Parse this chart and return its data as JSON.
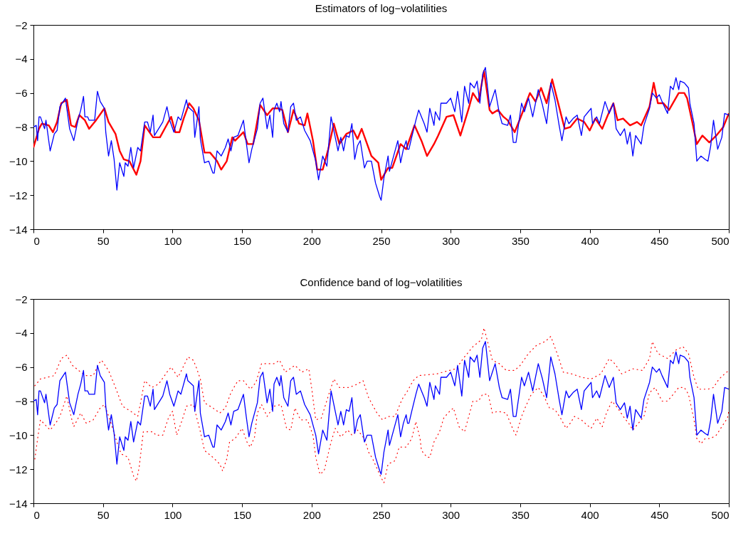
{
  "chart_data": [
    {
      "type": "line",
      "title": "Estimators of log−volatilities",
      "xlim": [
        0,
        500
      ],
      "xticks": [
        0,
        50,
        100,
        150,
        200,
        250,
        300,
        350,
        400,
        450,
        500
      ],
      "ylim": [
        -14,
        -2
      ],
      "yticks": [
        -14,
        -12,
        -10,
        -8,
        -6,
        -4,
        -2
      ],
      "series": [
        {
          "color": "#ff0000",
          "x": [
            0,
            4,
            6,
            11,
            14,
            17,
            20,
            24,
            27,
            30,
            33,
            37,
            40,
            45,
            51,
            54,
            59,
            62,
            65,
            69,
            74,
            77,
            80,
            86,
            91,
            95,
            99,
            102,
            105,
            108,
            112,
            115,
            119,
            123,
            127,
            132,
            135,
            139,
            143,
            145,
            151,
            154,
            158,
            163,
            168,
            172,
            176,
            179,
            183,
            187,
            191,
            195,
            197,
            201,
            204,
            208,
            212,
            216,
            220,
            225,
            230,
            233,
            236,
            243,
            248,
            250,
            255,
            258,
            264,
            268,
            274,
            279,
            283,
            288,
            291,
            297,
            302,
            307,
            313,
            316,
            320,
            324,
            328,
            330,
            334,
            338,
            341,
            346,
            350,
            357,
            361,
            365,
            369,
            373,
            377,
            382,
            386,
            391,
            396,
            400,
            404,
            409,
            413,
            417,
            420,
            424,
            429,
            434,
            437,
            443,
            446,
            449,
            453,
            457,
            464,
            468,
            470,
            474,
            477,
            481,
            486,
            491,
            496,
            500
          ],
          "values": [
            -9.2,
            -8.1,
            -7.8,
            -7.9,
            -8.3,
            -7.7,
            -6.6,
            -6.4,
            -7.9,
            -8.0,
            -7.3,
            -7.6,
            -8.1,
            -7.6,
            -6.9,
            -7.7,
            -8.4,
            -9.4,
            -9.9,
            -10.0,
            -10.8,
            -10.0,
            -7.9,
            -8.6,
            -8.6,
            -8.0,
            -7.4,
            -8.3,
            -8.3,
            -7.5,
            -6.6,
            -6.9,
            -7.6,
            -9.5,
            -9.5,
            -10.0,
            -10.5,
            -10.0,
            -8.6,
            -8.8,
            -8.3,
            -9.0,
            -9.0,
            -6.7,
            -7.3,
            -6.9,
            -6.9,
            -7.0,
            -8.3,
            -7.0,
            -7.8,
            -7.9,
            -7.2,
            -8.8,
            -10.5,
            -10.5,
            -9.3,
            -7.8,
            -9.0,
            -8.4,
            -8.2,
            -8.7,
            -8.1,
            -9.7,
            -10.1,
            -11.1,
            -10.4,
            -10.4,
            -9.0,
            -9.3,
            -7.9,
            -8.8,
            -9.7,
            -9.0,
            -8.5,
            -7.4,
            -7.3,
            -8.5,
            -6.9,
            -6.0,
            -6.5,
            -4.7,
            -7.0,
            -7.2,
            -7.0,
            -7.4,
            -7.6,
            -8.3,
            -7.5,
            -6.0,
            -6.5,
            -5.7,
            -6.6,
            -5.2,
            -6.5,
            -8.1,
            -8.0,
            -7.5,
            -7.7,
            -8.2,
            -7.5,
            -8.1,
            -7.3,
            -6.6,
            -7.6,
            -7.5,
            -7.9,
            -7.7,
            -7.9,
            -6.8,
            -5.4,
            -6.6,
            -6.6,
            -7.0,
            -6.0,
            -6.0,
            -6.3,
            -7.8,
            -9.0,
            -8.5,
            -8.9,
            -8.5,
            -8.0,
            -7.2
          ]
        },
        {
          "color": "#0000ff",
          "x": [
            0,
            2,
            3,
            4,
            5,
            8,
            9,
            12,
            15,
            17,
            19,
            23,
            26,
            29,
            32,
            34,
            36,
            37,
            39,
            40,
            44,
            46,
            48,
            51,
            52,
            54,
            56,
            58,
            60,
            62,
            65,
            66,
            68,
            70,
            72,
            75,
            77,
            80,
            82,
            84,
            86,
            87,
            90,
            93,
            94,
            96,
            98,
            101,
            104,
            106,
            110,
            111,
            115,
            116,
            119,
            120,
            123,
            126,
            129,
            130,
            132,
            135,
            138,
            140,
            142,
            144,
            147,
            151,
            153,
            155,
            157,
            161,
            163,
            165,
            168,
            170,
            172,
            173,
            175,
            177,
            178,
            180,
            183,
            185,
            187,
            189,
            192,
            195,
            199,
            203,
            205,
            208,
            211,
            214,
            219,
            221,
            223,
            225,
            227,
            229,
            231,
            233,
            235,
            238,
            240,
            243,
            246,
            249,
            250,
            252,
            255,
            256,
            259,
            262,
            264,
            266,
            268,
            269,
            270,
            272,
            275,
            277,
            281,
            283,
            285,
            288,
            289,
            292,
            293,
            297,
            300,
            303,
            305,
            308,
            310,
            313,
            314,
            317,
            319,
            321,
            323,
            325,
            328,
            332,
            335,
            337,
            341,
            343,
            345,
            347,
            351,
            353,
            356,
            359,
            363,
            366,
            369,
            372,
            375,
            378,
            380,
            383,
            385,
            388,
            391,
            394,
            396,
            399,
            401,
            402,
            405,
            407,
            411,
            414,
            417,
            419,
            422,
            425,
            427,
            429,
            431,
            433,
            437,
            439,
            443,
            445,
            448,
            450,
            452,
            456,
            458,
            460,
            462,
            464,
            465,
            468,
            471,
            472,
            475,
            477,
            480,
            483,
            485,
            487,
            489,
            492,
            495,
            497,
            500
          ],
          "values": [
            -8.0,
            -7.9,
            -8.8,
            -7.4,
            -7.4,
            -8.1,
            -7.6,
            -9.4,
            -8.4,
            -8.2,
            -6.8,
            -6.3,
            -8.1,
            -8.8,
            -7.6,
            -7.0,
            -6.2,
            -7.4,
            -7.4,
            -7.6,
            -7.6,
            -5.9,
            -6.5,
            -6.9,
            -8.3,
            -9.7,
            -8.8,
            -9.9,
            -11.7,
            -10.1,
            -10.9,
            -10.1,
            -10.3,
            -9.2,
            -10.4,
            -9.2,
            -9.4,
            -7.7,
            -7.7,
            -8.3,
            -7.3,
            -8.5,
            -8.1,
            -7.7,
            -7.4,
            -6.8,
            -7.6,
            -8.3,
            -7.4,
            -7.6,
            -6.4,
            -6.8,
            -7.1,
            -8.6,
            -6.8,
            -8.7,
            -10.1,
            -10.0,
            -10.7,
            -10.7,
            -9.4,
            -9.7,
            -9.2,
            -8.7,
            -9.4,
            -8.6,
            -8.5,
            -7.6,
            -8.9,
            -10.1,
            -9.3,
            -8.1,
            -6.6,
            -6.3,
            -8.1,
            -7.3,
            -8.6,
            -7.0,
            -6.6,
            -7.1,
            -6.5,
            -7.8,
            -8.3,
            -6.8,
            -6.6,
            -7.6,
            -7.4,
            -8.2,
            -8.8,
            -10.0,
            -11.1,
            -9.7,
            -10.3,
            -7.4,
            -9.4,
            -8.6,
            -9.4,
            -8.5,
            -8.6,
            -7.8,
            -9.9,
            -9.1,
            -8.8,
            -10.4,
            -10.0,
            -10.0,
            -11.3,
            -12.1,
            -12.3,
            -11.0,
            -9.7,
            -10.6,
            -9.7,
            -8.8,
            -10.1,
            -9.3,
            -8.8,
            -9.3,
            -9.3,
            -8.6,
            -7.6,
            -7.0,
            -7.8,
            -8.3,
            -6.9,
            -7.9,
            -7.1,
            -7.6,
            -6.6,
            -6.6,
            -6.3,
            -7.1,
            -5.9,
            -7.7,
            -5.6,
            -6.6,
            -5.4,
            -5.7,
            -5.3,
            -6.6,
            -4.9,
            -4.5,
            -6.8,
            -5.8,
            -7.2,
            -7.8,
            -7.9,
            -7.3,
            -8.9,
            -8.9,
            -6.6,
            -7.1,
            -6.3,
            -7.4,
            -5.8,
            -6.7,
            -7.8,
            -5.4,
            -6.4,
            -7.9,
            -8.8,
            -7.4,
            -7.8,
            -7.5,
            -7.3,
            -8.5,
            -7.4,
            -7.1,
            -6.9,
            -7.8,
            -7.4,
            -7.8,
            -6.5,
            -7.2,
            -6.6,
            -8.1,
            -8.5,
            -8.1,
            -9.0,
            -8.3,
            -9.7,
            -8.5,
            -9.0,
            -7.9,
            -6.9,
            -6.0,
            -6.3,
            -6.1,
            -6.5,
            -7.2,
            -5.6,
            -5.8,
            -5.1,
            -5.8,
            -5.3,
            -5.4,
            -5.7,
            -6.6,
            -7.8,
            -10.0,
            -9.7,
            -9.9,
            -10.0,
            -9.1,
            -7.6,
            -9.3,
            -8.6,
            -7.2,
            -7.3
          ]
        }
      ]
    },
    {
      "type": "line",
      "title": "Confidence band of log−volatilities",
      "xlim": [
        0,
        500
      ],
      "xticks": [
        0,
        50,
        100,
        150,
        200,
        250,
        300,
        350,
        400,
        450,
        500
      ],
      "ylim": [
        -14,
        -2
      ],
      "yticks": [
        -14,
        -12,
        -10,
        -8,
        -6,
        -4,
        -2
      ],
      "series": [
        {
          "color": "#ff0000",
          "line_style": "dotted",
          "x": [
            1,
            5,
            15,
            20,
            24,
            28,
            34,
            38,
            43,
            47,
            49,
            54,
            59,
            64,
            70,
            75,
            77,
            80,
            85,
            90,
            96,
            99,
            104,
            110,
            111,
            115,
            117,
            120,
            123,
            129,
            134,
            138,
            142,
            147,
            151,
            156,
            160,
            164,
            166,
            173,
            177,
            181,
            188,
            193,
            198,
            200,
            203,
            207,
            212,
            216,
            220,
            227,
            233,
            237,
            241,
            247,
            251,
            255,
            260,
            265,
            269,
            273,
            277,
            290,
            299,
            304,
            309,
            316,
            322,
            324,
            330,
            335,
            340,
            346,
            350,
            356,
            362,
            368,
            372,
            377,
            381,
            387,
            394,
            401,
            408,
            414,
            418,
            423,
            431,
            438,
            443,
            445,
            449,
            456,
            462,
            467,
            471,
            475,
            478,
            485,
            489,
            493,
            497,
            500
          ],
          "values": [
            -7.1,
            -6.7,
            -6.5,
            -5.5,
            -5.3,
            -5.9,
            -6.3,
            -6.5,
            -6.5,
            -5.8,
            -5.6,
            -6.2,
            -7.2,
            -8.3,
            -8.6,
            -8.9,
            -8.1,
            -6.8,
            -7.2,
            -7.0,
            -6.3,
            -6.0,
            -6.6,
            -5.6,
            -5.4,
            -5.6,
            -6.0,
            -6.7,
            -8.1,
            -8.4,
            -8.7,
            -8.4,
            -7.5,
            -6.8,
            -6.8,
            -7.3,
            -6.9,
            -5.8,
            -5.8,
            -5.8,
            -5.6,
            -6.3,
            -5.9,
            -6.3,
            -6.1,
            -7.2,
            -9.1,
            -9.0,
            -7.7,
            -6.7,
            -7.2,
            -7.2,
            -7.0,
            -6.8,
            -7.8,
            -8.7,
            -9.1,
            -8.9,
            -8.9,
            -7.9,
            -7.4,
            -6.8,
            -6.5,
            -6.4,
            -6.2,
            -6.1,
            -5.5,
            -4.8,
            -4.4,
            -3.7,
            -5.6,
            -5.8,
            -6.2,
            -6.2,
            -5.9,
            -5.2,
            -4.7,
            -4.5,
            -4.2,
            -5.3,
            -6.3,
            -6.4,
            -6.6,
            -6.7,
            -6.4,
            -5.5,
            -5.8,
            -6.4,
            -6.1,
            -6.2,
            -5.5,
            -4.5,
            -5.2,
            -5.5,
            -5.0,
            -4.8,
            -5.2,
            -6.6,
            -7.3,
            -7.3,
            -7.2,
            -6.7,
            -6.4,
            -6.2
          ]
        },
        {
          "color": "#ff0000",
          "line_style": "dotted",
          "x": [
            1,
            3,
            5,
            12,
            16,
            19,
            24,
            27,
            29,
            34,
            38,
            43,
            48,
            51,
            55,
            60,
            63,
            68,
            72,
            74,
            76,
            79,
            82,
            86,
            88,
            93,
            97,
            100,
            103,
            107,
            110,
            115,
            120,
            123,
            129,
            134,
            136,
            139,
            141,
            145,
            150,
            154,
            156,
            159,
            161,
            164,
            168,
            173,
            178,
            182,
            185,
            188,
            192,
            197,
            201,
            203,
            206,
            209,
            214,
            217,
            221,
            226,
            229,
            233,
            238,
            241,
            244,
            250,
            252,
            255,
            260,
            263,
            268,
            272,
            275,
            278,
            279,
            283,
            285,
            288,
            292,
            295,
            298,
            302,
            306,
            310,
            313,
            316,
            320,
            323,
            327,
            330,
            334,
            340,
            345,
            347,
            351,
            354,
            358,
            363,
            367,
            371,
            375,
            379,
            383,
            386,
            389,
            394,
            398,
            401,
            405,
            409,
            412,
            416,
            420,
            425,
            428,
            431,
            435,
            439,
            443,
            447,
            452,
            456,
            460,
            464,
            468,
            471,
            475,
            477,
            480,
            483,
            487,
            491,
            495,
            499,
            500
          ],
          "values": [
            -11.4,
            -10.2,
            -9.1,
            -9.7,
            -9.3,
            -8.9,
            -7.7,
            -8.9,
            -9.5,
            -8.7,
            -9.3,
            -9.1,
            -8.4,
            -8.2,
            -9.1,
            -10.4,
            -11.1,
            -11.3,
            -12.4,
            -12.7,
            -11.9,
            -9.8,
            -9.8,
            -9.8,
            -10.0,
            -10.0,
            -9.0,
            -8.6,
            -10.0,
            -9.1,
            -8.3,
            -8.2,
            -9.8,
            -10.9,
            -11.3,
            -11.7,
            -12.1,
            -11.4,
            -10.4,
            -10.2,
            -9.6,
            -10.5,
            -10.7,
            -10.1,
            -8.7,
            -8.2,
            -8.9,
            -8.3,
            -8.2,
            -9.6,
            -9.7,
            -8.4,
            -9.1,
            -9.1,
            -10.0,
            -11.3,
            -12.3,
            -12.1,
            -10.4,
            -9.6,
            -10.1,
            -9.7,
            -10.0,
            -9.7,
            -10.2,
            -11.0,
            -11.4,
            -12.5,
            -12.8,
            -11.7,
            -11.5,
            -10.7,
            -10.7,
            -10.2,
            -9.2,
            -10.2,
            -10.9,
            -11.3,
            -11.3,
            -10.4,
            -9.8,
            -9.0,
            -8.7,
            -8.4,
            -9.5,
            -9.8,
            -8.9,
            -8.0,
            -8.0,
            -7.6,
            -7.6,
            -8.7,
            -8.6,
            -8.7,
            -9.7,
            -10.0,
            -8.9,
            -8.3,
            -7.6,
            -7.2,
            -7.7,
            -8.4,
            -8.5,
            -9.0,
            -9.6,
            -9.3,
            -8.9,
            -9.1,
            -9.4,
            -9.6,
            -9.0,
            -9.5,
            -8.7,
            -8.0,
            -8.4,
            -9.0,
            -9.3,
            -9.7,
            -9.3,
            -8.9,
            -7.5,
            -7.2,
            -8.0,
            -8.0,
            -7.6,
            -7.2,
            -7.2,
            -7.6,
            -9.1,
            -10.2,
            -10.5,
            -10.2,
            -10.2,
            -10.0,
            -9.5,
            -9.0,
            -8.6
          ]
        },
        {
          "color": "#0000ff",
          "x": [
            0,
            2,
            3,
            4,
            5,
            8,
            9,
            12,
            15,
            17,
            19,
            23,
            26,
            29,
            32,
            34,
            36,
            37,
            39,
            40,
            44,
            46,
            48,
            51,
            52,
            54,
            56,
            58,
            60,
            62,
            65,
            66,
            68,
            70,
            72,
            75,
            77,
            80,
            82,
            84,
            86,
            87,
            90,
            93,
            94,
            96,
            98,
            101,
            104,
            106,
            110,
            111,
            115,
            116,
            119,
            120,
            123,
            126,
            129,
            130,
            132,
            135,
            138,
            140,
            142,
            144,
            147,
            151,
            153,
            155,
            157,
            161,
            163,
            165,
            168,
            170,
            172,
            173,
            175,
            177,
            178,
            180,
            183,
            185,
            187,
            189,
            192,
            195,
            199,
            203,
            205,
            208,
            211,
            214,
            219,
            221,
            223,
            225,
            227,
            229,
            231,
            233,
            235,
            238,
            240,
            243,
            246,
            249,
            250,
            252,
            255,
            256,
            259,
            262,
            264,
            266,
            268,
            269,
            270,
            272,
            275,
            277,
            281,
            283,
            285,
            288,
            289,
            292,
            293,
            297,
            300,
            303,
            305,
            308,
            310,
            313,
            314,
            317,
            319,
            321,
            323,
            325,
            328,
            332,
            335,
            337,
            341,
            343,
            345,
            347,
            351,
            353,
            356,
            359,
            363,
            366,
            369,
            372,
            375,
            378,
            380,
            383,
            385,
            388,
            391,
            394,
            396,
            399,
            401,
            402,
            405,
            407,
            411,
            414,
            417,
            419,
            422,
            425,
            427,
            429,
            431,
            433,
            437,
            439,
            443,
            445,
            448,
            450,
            452,
            456,
            458,
            460,
            462,
            464,
            465,
            468,
            471,
            472,
            475,
            477,
            480,
            483,
            485,
            487,
            489,
            492,
            495,
            497,
            500
          ],
          "values": [
            -8.0,
            -7.9,
            -8.8,
            -7.4,
            -7.4,
            -8.1,
            -7.6,
            -9.4,
            -8.4,
            -8.2,
            -6.8,
            -6.3,
            -8.1,
            -8.8,
            -7.6,
            -7.0,
            -6.2,
            -7.4,
            -7.4,
            -7.6,
            -7.6,
            -5.9,
            -6.5,
            -6.9,
            -8.3,
            -9.7,
            -8.8,
            -9.9,
            -11.7,
            -10.1,
            -10.9,
            -10.1,
            -10.3,
            -9.2,
            -10.4,
            -9.2,
            -9.4,
            -7.7,
            -7.7,
            -8.3,
            -7.3,
            -8.5,
            -8.1,
            -7.7,
            -7.4,
            -6.8,
            -7.6,
            -8.3,
            -7.4,
            -7.6,
            -6.4,
            -6.8,
            -7.1,
            -8.6,
            -6.8,
            -8.7,
            -10.1,
            -10.0,
            -10.7,
            -10.7,
            -9.4,
            -9.7,
            -9.2,
            -8.7,
            -9.4,
            -8.6,
            -8.5,
            -7.6,
            -8.9,
            -10.1,
            -9.3,
            -8.1,
            -6.6,
            -6.3,
            -8.1,
            -7.3,
            -8.6,
            -7.0,
            -6.6,
            -7.1,
            -6.5,
            -7.8,
            -8.3,
            -6.8,
            -6.6,
            -7.6,
            -7.4,
            -8.2,
            -8.8,
            -10.0,
            -11.1,
            -9.7,
            -10.3,
            -7.4,
            -9.4,
            -8.6,
            -9.4,
            -8.5,
            -8.6,
            -7.8,
            -9.9,
            -9.1,
            -8.8,
            -10.4,
            -10.0,
            -10.0,
            -11.3,
            -12.1,
            -12.3,
            -11.0,
            -9.7,
            -10.6,
            -9.7,
            -8.8,
            -10.1,
            -9.3,
            -8.8,
            -9.3,
            -9.3,
            -8.6,
            -7.6,
            -7.0,
            -7.8,
            -8.3,
            -6.9,
            -7.9,
            -7.1,
            -7.6,
            -6.6,
            -6.6,
            -6.3,
            -7.1,
            -5.9,
            -7.7,
            -5.6,
            -6.6,
            -5.4,
            -5.7,
            -5.3,
            -6.6,
            -4.9,
            -4.5,
            -6.8,
            -5.8,
            -7.2,
            -7.8,
            -7.9,
            -7.3,
            -8.9,
            -8.9,
            -6.6,
            -7.1,
            -6.3,
            -7.4,
            -5.8,
            -6.7,
            -7.8,
            -5.4,
            -6.4,
            -7.9,
            -8.8,
            -7.4,
            -7.8,
            -7.5,
            -7.3,
            -8.5,
            -7.4,
            -7.1,
            -6.9,
            -7.8,
            -7.4,
            -7.8,
            -6.5,
            -7.2,
            -6.6,
            -8.1,
            -8.5,
            -8.1,
            -9.0,
            -8.3,
            -9.7,
            -8.5,
            -9.0,
            -7.9,
            -6.9,
            -6.0,
            -6.3,
            -6.1,
            -6.5,
            -7.2,
            -5.6,
            -5.8,
            -5.1,
            -5.8,
            -5.3,
            -5.4,
            -5.7,
            -6.6,
            -7.8,
            -10.0,
            -9.7,
            -9.9,
            -10.0,
            -9.1,
            -7.6,
            -9.3,
            -8.6,
            -7.2,
            -7.3
          ]
        }
      ]
    }
  ]
}
